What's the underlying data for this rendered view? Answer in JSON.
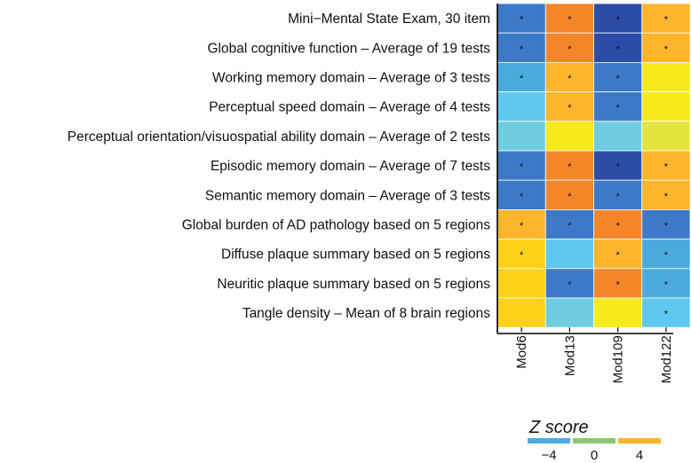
{
  "chart_data": {
    "type": "heatmap",
    "rows": [
      "Mini−Mental State Exam, 30 item",
      "Global cognitive function – Average of 19 tests",
      "Working memory domain – Average of 3 tests",
      "Perceptual speed domain – Average of 4 tests",
      "Perceptual orientation/visuospatial ability domain – Average of 2 tests",
      "Episodic memory domain – Average of 7 tests",
      "Semantic memory domain – Average of 3 tests",
      "Global burden of AD pathology based on 5 regions",
      "Diffuse plaque summary based on 5 regions",
      "Neuritic plaque summary based on 5 regions",
      "Tangle density – Mean of 8 brain regions"
    ],
    "columns": [
      "Mod6",
      "Mod13",
      "Mod109",
      "Mod122"
    ],
    "values": [
      [
        -4.5,
        6.5,
        -8.0,
        4.5
      ],
      [
        -4.5,
        6.5,
        -8.0,
        4.5
      ],
      [
        -3.5,
        4.5,
        -5.5,
        1.0
      ],
      [
        -3.0,
        4.0,
        -5.0,
        1.5
      ],
      [
        -2.0,
        0.5,
        -2.0,
        0.2
      ],
      [
        -4.5,
        6.0,
        -7.0,
        5.0
      ],
      [
        -4.5,
        5.5,
        -5.5,
        4.0
      ],
      [
        4.5,
        -5.0,
        6.5,
        -5.0
      ],
      [
        3.0,
        -2.5,
        4.5,
        -3.5
      ],
      [
        2.0,
        -5.5,
        6.0,
        -3.5
      ],
      [
        2.5,
        -2.0,
        1.0,
        -3.0
      ]
    ],
    "significant": [
      [
        true,
        true,
        true,
        true
      ],
      [
        true,
        true,
        true,
        true
      ],
      [
        true,
        true,
        true,
        false
      ],
      [
        false,
        true,
        true,
        false
      ],
      [
        false,
        false,
        false,
        false
      ],
      [
        true,
        true,
        true,
        true
      ],
      [
        true,
        true,
        true,
        true
      ],
      [
        true,
        true,
        true,
        true
      ],
      [
        true,
        false,
        true,
        true
      ],
      [
        false,
        true,
        true,
        true
      ],
      [
        false,
        false,
        false,
        true
      ]
    ],
    "marker": "*",
    "legend": {
      "title": "Z score",
      "ticks": [
        "−4",
        "0",
        "4"
      ],
      "tick_values": [
        -4,
        0,
        4
      ],
      "colors": [
        "#4aaae0",
        "#8cc86c",
        "#fdb52b"
      ]
    },
    "colors": {
      "neg_strong": "#2b4ba6",
      "neg_mid": "#3d79c8",
      "neg_light": "#4aaae0",
      "neg_pale": "#5ec8ef",
      "near_zero_neg": "#70cce0",
      "near_zero_pos": "#e3e43e",
      "pos_pale": "#f6ea1c",
      "pos_light": "#fbd218",
      "pos_mid": "#fdb52b",
      "pos_strong": "#f4862a",
      "grid_line": "#ffffff"
    }
  }
}
